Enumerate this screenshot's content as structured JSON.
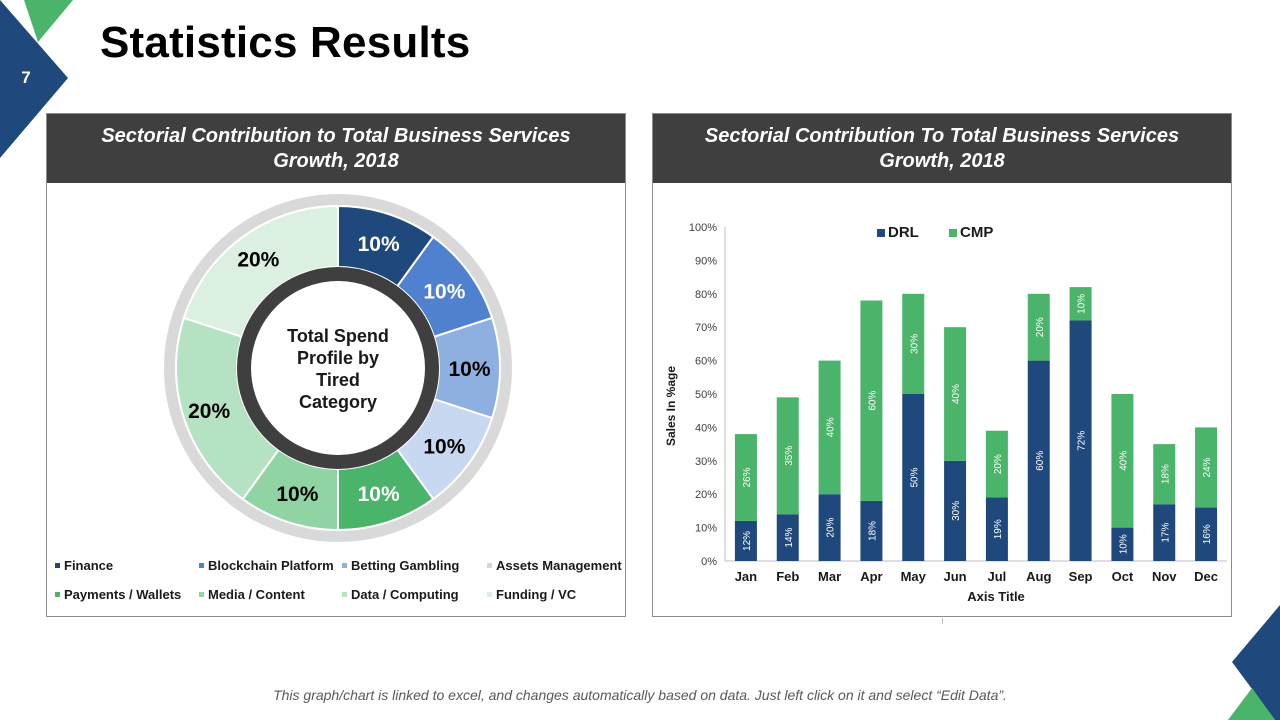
{
  "slide": {
    "number": "7",
    "title": "Statistics Results",
    "footer_note": "This graph/chart is linked to excel, and changes automatically based on data. Just left click on it and select “Edit Data”.",
    "colors": {
      "brand_blue": "#1f497d",
      "brand_green": "#4ab46a",
      "header_bg": "#3f3f3f"
    }
  },
  "left_panel": {
    "header": "Sectorial Contribution to Total Business Services Growth, 2018"
  },
  "right_panel": {
    "header": "Sectorial Contribution To Total Business Services Growth, 2018"
  },
  "chart_data": [
    {
      "type": "pie",
      "variant": "donut",
      "title": "Total Spend Profile by Tired Category",
      "center_label": [
        "Total Spend",
        "Profile by",
        "Tired",
        "Category"
      ],
      "slices": [
        {
          "label": "Finance",
          "value": 10,
          "display": "10%",
          "color": "#1f497d",
          "text_color": "#ffffff"
        },
        {
          "label": "Blockchain Platform",
          "value": 10,
          "display": "10%",
          "color": "#4f81cf",
          "text_color": "#ffffff"
        },
        {
          "label": "Betting Gambling",
          "value": 10,
          "display": "10%",
          "color": "#8eb0e0",
          "text_color": "#000000"
        },
        {
          "label": "Assets Management",
          "value": 10,
          "display": "10%",
          "color": "#c8d8f0",
          "text_color": "#000000"
        },
        {
          "label": "Payments / Wallets",
          "value": 10,
          "display": "10%",
          "color": "#4ab46a",
          "text_color": "#ffffff"
        },
        {
          "label": "Media / Content",
          "value": 10,
          "display": "10%",
          "color": "#90d4a4",
          "text_color": "#000000"
        },
        {
          "label": "Data / Computing",
          "value": 20,
          "display": "20%",
          "color": "#b4e2c2",
          "text_color": "#000000"
        },
        {
          "label": "Funding / VC",
          "value": 20,
          "display": "20%",
          "color": "#dcf0e2",
          "text_color": "#000000"
        }
      ],
      "legend": [
        "Finance",
        "Blockchain Platform",
        "Betting Gambling",
        "Assets Management",
        "Payments / Wallets",
        "Media / Content",
        "Data / Computing",
        "Funding / VC"
      ],
      "legend_position": "bottom"
    },
    {
      "type": "bar",
      "stacked": true,
      "orientation": "vertical",
      "title": "Sectorial Contribution To Total Business Services Growth, 2018",
      "categories": [
        "Jan",
        "Feb",
        "Mar",
        "Apr",
        "May",
        "Jun",
        "Jul",
        "Aug",
        "Sep",
        "Oct",
        "Nov",
        "Dec"
      ],
      "series": [
        {
          "name": "DRL",
          "color": "#1f497d",
          "values": [
            12,
            14,
            20,
            18,
            50,
            30,
            19,
            60,
            72,
            10,
            17,
            16
          ]
        },
        {
          "name": "CMP",
          "color": "#4ab46a",
          "values": [
            26,
            35,
            40,
            60,
            30,
            40,
            20,
            20,
            10,
            40,
            18,
            24
          ]
        }
      ],
      "xlabel": "Axis Title",
      "ylabel": "Sales In %age",
      "ylim": [
        0,
        100
      ],
      "yticks": [
        "0%",
        "10%",
        "20%",
        "30%",
        "40%",
        "50%",
        "60%",
        "70%",
        "80%",
        "90%",
        "100%"
      ],
      "grid": false,
      "legend_position": "top-center",
      "data_labels": "rotated-inside"
    }
  ]
}
